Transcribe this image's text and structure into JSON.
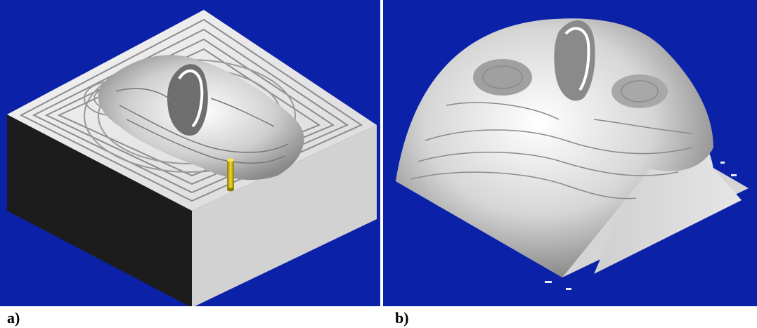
{
  "figure": {
    "panel_a": {
      "label": "a)",
      "content": "machined-block-face-relief",
      "tool": "yellow-end-mill"
    },
    "panel_b": {
      "label": "b)",
      "content": "finished-face-relief"
    }
  },
  "colors": {
    "background": "#0b22a8",
    "surface": "#e8e8e8",
    "side_light": "#d2d2d2",
    "side_dark": "#1c1c1c",
    "tool": "#d8c21a"
  }
}
